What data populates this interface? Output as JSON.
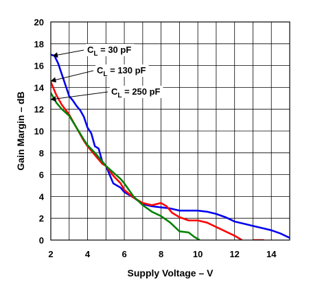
{
  "chart_data": {
    "type": "line",
    "title": "",
    "xlabel": "Supply Voltage – V",
    "ylabel": "Gain Margin – dB",
    "xlim": [
      2,
      15
    ],
    "ylim": [
      0,
      20
    ],
    "x_ticks": [
      2,
      4,
      6,
      8,
      10,
      12,
      14
    ],
    "y_ticks": [
      0,
      2,
      4,
      6,
      8,
      10,
      12,
      14,
      16,
      18,
      20
    ],
    "grid": true,
    "legend": "annotations with arrows",
    "series": [
      {
        "name": "C_L = 30 pF",
        "label_main": "C",
        "label_sub": "L",
        "label_rest": " = 30 pF",
        "color": "#0000ee",
        "points": [
          [
            2.0,
            17.0
          ],
          [
            2.2,
            16.9
          ],
          [
            2.4,
            16.2
          ],
          [
            2.6,
            15.2
          ],
          [
            2.8,
            14.2
          ],
          [
            3.0,
            13.2
          ],
          [
            3.2,
            12.8
          ],
          [
            3.4,
            12.3
          ],
          [
            3.6,
            11.9
          ],
          [
            3.8,
            11.3
          ],
          [
            4.0,
            10.3
          ],
          [
            4.2,
            9.8
          ],
          [
            4.4,
            8.6
          ],
          [
            4.6,
            8.4
          ],
          [
            4.8,
            7.2
          ],
          [
            5.0,
            6.8
          ],
          [
            5.2,
            6.0
          ],
          [
            5.4,
            5.2
          ],
          [
            5.6,
            5.0
          ],
          [
            5.8,
            4.8
          ],
          [
            6.0,
            4.4
          ],
          [
            6.5,
            3.9
          ],
          [
            7.0,
            3.3
          ],
          [
            7.5,
            3.1
          ],
          [
            8.0,
            3.0
          ],
          [
            8.5,
            2.9
          ],
          [
            9.0,
            2.7
          ],
          [
            9.5,
            2.7
          ],
          [
            10.0,
            2.7
          ],
          [
            10.5,
            2.6
          ],
          [
            11.0,
            2.4
          ],
          [
            11.5,
            2.1
          ],
          [
            12.0,
            1.7
          ],
          [
            12.5,
            1.5
          ],
          [
            13.0,
            1.3
          ],
          [
            13.5,
            1.1
          ],
          [
            14.0,
            0.9
          ],
          [
            14.5,
            0.6
          ],
          [
            15.0,
            0.2
          ]
        ]
      },
      {
        "name": "C_L = 130 pF",
        "label_main": "C",
        "label_sub": "L",
        "label_rest": " = 130 pF",
        "color": "#ff0000",
        "points": [
          [
            2.0,
            14.5
          ],
          [
            2.3,
            13.3
          ],
          [
            2.6,
            12.4
          ],
          [
            3.0,
            11.5
          ],
          [
            3.4,
            10.3
          ],
          [
            3.8,
            9.1
          ],
          [
            4.0,
            8.6
          ],
          [
            4.4,
            7.8
          ],
          [
            4.8,
            7.0
          ],
          [
            5.0,
            6.8
          ],
          [
            5.4,
            5.9
          ],
          [
            5.8,
            5.2
          ],
          [
            6.0,
            4.6
          ],
          [
            6.5,
            3.9
          ],
          [
            7.0,
            3.4
          ],
          [
            7.5,
            3.2
          ],
          [
            8.0,
            3.4
          ],
          [
            8.3,
            3.1
          ],
          [
            8.6,
            2.5
          ],
          [
            9.0,
            2.1
          ],
          [
            9.5,
            1.8
          ],
          [
            10.0,
            1.8
          ],
          [
            10.5,
            1.6
          ],
          [
            11.0,
            1.2
          ],
          [
            11.5,
            0.8
          ],
          [
            12.0,
            0.4
          ],
          [
            12.4,
            0.0
          ]
        ]
      },
      {
        "name": "C_L = 250 pF",
        "label_main": "C",
        "label_sub": "L",
        "label_rest": " = 250 pF",
        "color": "#008000",
        "points": [
          [
            2.0,
            13.5
          ],
          [
            2.3,
            12.6
          ],
          [
            2.6,
            12.0
          ],
          [
            3.0,
            11.4
          ],
          [
            3.4,
            10.3
          ],
          [
            3.8,
            9.2
          ],
          [
            4.0,
            8.7
          ],
          [
            4.4,
            8.0
          ],
          [
            4.8,
            7.2
          ],
          [
            5.0,
            6.8
          ],
          [
            5.4,
            6.2
          ],
          [
            5.8,
            5.6
          ],
          [
            6.0,
            5.2
          ],
          [
            6.5,
            4.0
          ],
          [
            7.0,
            3.2
          ],
          [
            7.5,
            2.6
          ],
          [
            8.0,
            2.2
          ],
          [
            8.5,
            1.6
          ],
          [
            9.0,
            0.8
          ],
          [
            9.5,
            0.7
          ],
          [
            9.8,
            0.3
          ],
          [
            10.1,
            0.0
          ]
        ]
      }
    ],
    "red_tail_segment": [
      [
        13.0,
        0.0
      ],
      [
        13.6,
        0.0
      ]
    ]
  }
}
